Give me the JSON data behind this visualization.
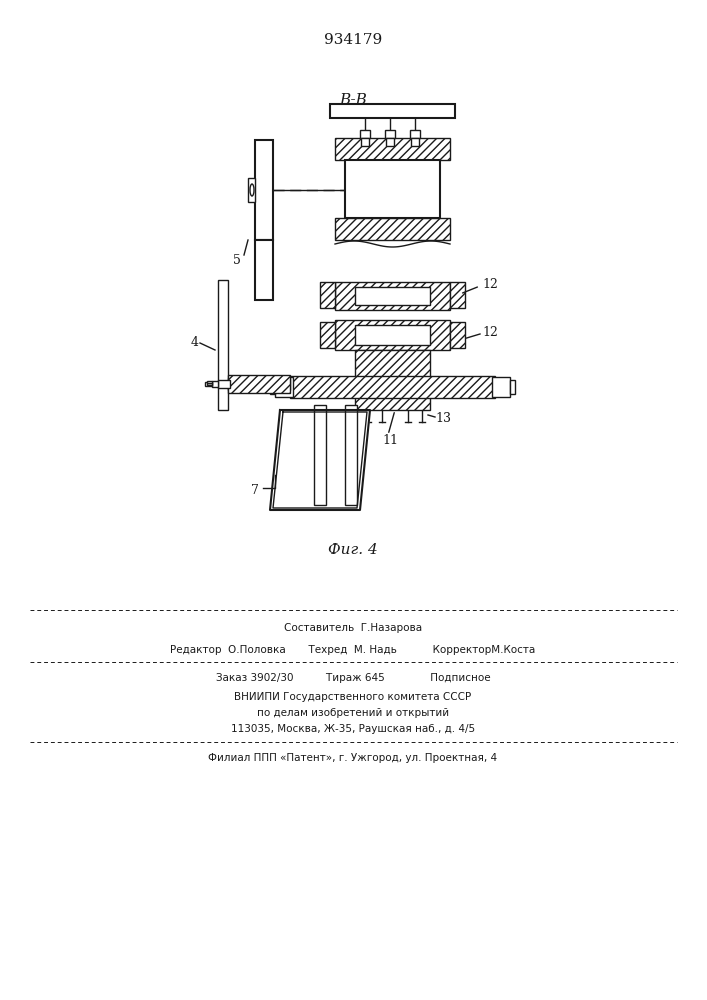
{
  "title": "934179",
  "section_label": "B-B",
  "fig_label": "Фиг. 4",
  "background_color": "#f5f5f0",
  "line_color": "#1a1a1a",
  "hatch_color": "#1a1a1a",
  "label_5": "5",
  "label_4": "4",
  "label_7": "7",
  "label_11": "11",
  "label_12a": "12",
  "label_12b": "12",
  "label_13": "13",
  "footer_line1": "Составитель  Г.Назарова",
  "footer_line2": "Редактор  О.Половка       Техред  М. Надь           КорректорМ.Коста",
  "footer_line3": "Заказ 3902/30          Тираж 645              Подписное",
  "footer_line4": "ВНИИПИ Государственного комитета СССР",
  "footer_line5": "по делам изобретений и открытий",
  "footer_line6": "113035, Москва, Ж-35, Раушская наб., д. 4/5",
  "footer_line7": "Филиал ППП «Патент», г. Ужгород, ул. Проектная, 4"
}
